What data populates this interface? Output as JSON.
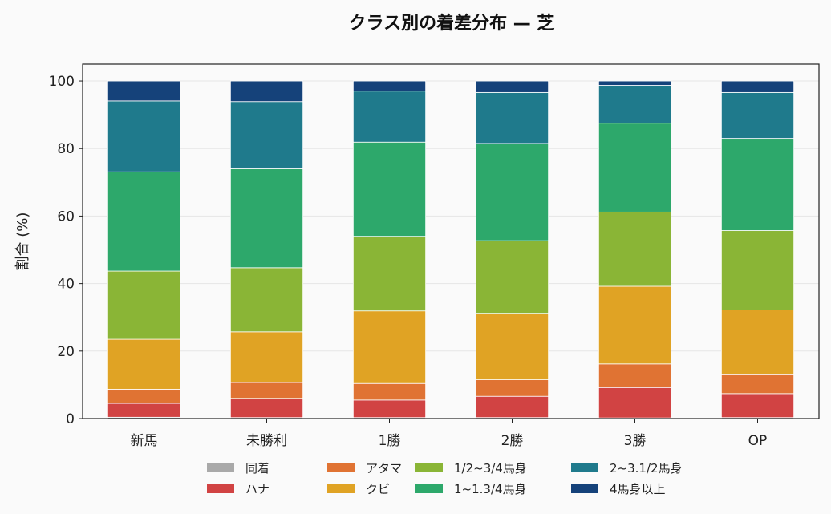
{
  "chart_data": {
    "type": "bar",
    "stacked": true,
    "title": "クラス別の着差分布 — 芝",
    "xlabel": "",
    "ylabel": "割合 (%)",
    "ylim": [
      0,
      105
    ],
    "yticks": [
      0,
      20,
      40,
      60,
      80,
      100
    ],
    "grid": "horizontal",
    "legend_placement": "bottom",
    "categories": [
      "新馬",
      "未勝利",
      "1勝",
      "2勝",
      "3勝",
      "OP"
    ],
    "series": [
      {
        "name": "同着",
        "color": "#a9a9a9",
        "values": [
          0.4,
          0.3,
          0.3,
          0.3,
          0.2,
          0.3
        ]
      },
      {
        "name": "ハナ",
        "color": "#d14343",
        "values": [
          4.1,
          5.7,
          5.2,
          6.3,
          9.0,
          7.1
        ]
      },
      {
        "name": "アタマ",
        "color": "#e07333",
        "values": [
          4.2,
          4.7,
          4.9,
          4.9,
          7.0,
          5.6
        ]
      },
      {
        "name": "クビ",
        "color": "#e0a324",
        "values": [
          14.8,
          15.0,
          21.5,
          19.7,
          23.0,
          19.2
        ]
      },
      {
        "name": "1/2~3/4馬身",
        "color": "#8ab536",
        "values": [
          20.2,
          19.0,
          22.1,
          21.5,
          22.0,
          23.5
        ]
      },
      {
        "name": "1~1.3/4馬身",
        "color": "#2da86b",
        "values": [
          29.4,
          29.3,
          27.9,
          28.8,
          26.3,
          27.3
        ]
      },
      {
        "name": "2~3.1/2馬身",
        "color": "#1f7a8c",
        "values": [
          21.0,
          19.9,
          15.1,
          15.1,
          11.2,
          13.6
        ]
      },
      {
        "name": "4馬身以上",
        "color": "#15427a",
        "values": [
          5.9,
          6.1,
          3.0,
          3.4,
          1.3,
          3.4
        ]
      }
    ]
  }
}
